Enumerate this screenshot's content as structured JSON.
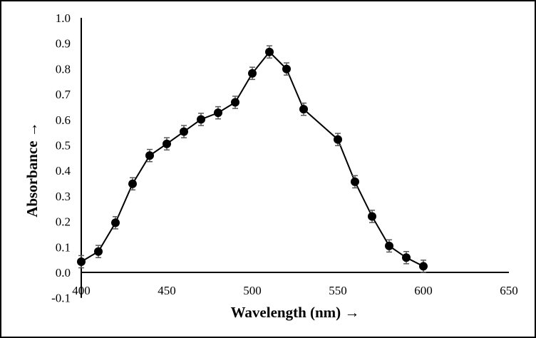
{
  "chart_data": {
    "type": "line",
    "title": "",
    "xlabel": "Wavelength (nm) →",
    "ylabel": "Absorbance →",
    "xlim": [
      400,
      650
    ],
    "ylim": [
      -0.1,
      1.0
    ],
    "x_ticks": [
      "400",
      "450",
      "500",
      "550",
      "600",
      "650"
    ],
    "y_ticks": [
      "-0.1",
      "0.0",
      "0.1",
      "0.2",
      "0.3",
      "0.4",
      "0.5",
      "0.6",
      "0.7",
      "0.8",
      "0.9",
      "1.0"
    ],
    "grid": false,
    "series": [
      {
        "name": "Absorbance",
        "color": "#000000",
        "marker": "filled-circle",
        "x": [
          400,
          410,
          420,
          430,
          440,
          450,
          460,
          470,
          480,
          490,
          500,
          510,
          520,
          530,
          550,
          560,
          570,
          580,
          590,
          600
        ],
        "y": [
          0.042,
          0.082,
          0.195,
          0.348,
          0.459,
          0.505,
          0.553,
          0.601,
          0.627,
          0.668,
          0.782,
          0.866,
          0.799,
          0.641,
          0.522,
          0.356,
          0.22,
          0.104,
          0.058,
          0.024
        ],
        "error": 0.024,
        "error_color": "#595959"
      }
    ]
  }
}
